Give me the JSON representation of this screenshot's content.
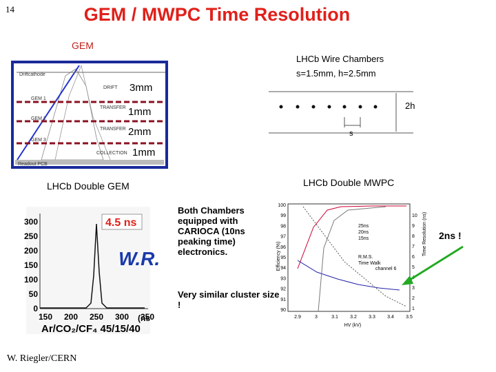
{
  "slide_number": "14",
  "title": "GEM / MWPC Time Resolution",
  "gem": {
    "label": "GEM",
    "diagram_labels": [
      "Driftcathode",
      "DRIFT",
      "GEM 1",
      "TRANSFER",
      "GEM 2",
      "TRANSFER",
      "GEM 3",
      "COLLECTION",
      "Readout PCB"
    ],
    "gaps": [
      "3mm",
      "1mm",
      "2mm",
      "1mm"
    ],
    "caption": "LHCb Double GEM"
  },
  "wire": {
    "label": "LHCb Wire Chambers",
    "params": "s=1.5mm, h=2.5mm",
    "s_label": "s",
    "h_label": "2h",
    "caption": "LHCb Double MWPC"
  },
  "histogram": {
    "peak_label": "4.5 ns",
    "watermark": "W.R.",
    "y_ticks": [
      "300",
      "250",
      "200",
      "150",
      "100",
      "50",
      "0"
    ],
    "x_ticks": [
      "150",
      "200",
      "250",
      "300",
      "350"
    ],
    "x_unit": "(ns",
    "gas": "Ar/CO₂/CF₄ 45/15/40"
  },
  "mwpc_plot": {
    "y_label": "Efficiency (%)",
    "y2_label": "Time Resolution (ns)",
    "x_label": "HV (kV)",
    "y_ticks": [
      "100",
      "99",
      "98",
      "97",
      "96",
      "95",
      "94",
      "93",
      "92",
      "91",
      "90"
    ],
    "y2_ticks": [
      "10",
      "9",
      "8",
      "7",
      "6",
      "5",
      "4",
      "3",
      "2",
      "1"
    ],
    "x_ticks": [
      "2.9",
      "3",
      "3.1",
      "3.2",
      "3.3",
      "3.4",
      "3.5"
    ],
    "legend": [
      "25ns",
      "20ns",
      "15ns",
      "R.M.S.",
      "Time Walk"
    ],
    "note": "channel 6"
  },
  "notes": [
    "Both Chambers equipped with CARIOCA (10ns peaking time) electronics.",
    "Very similar cluster size !"
  ],
  "callout": "2ns !",
  "author": "W. Riegler/CERN"
}
